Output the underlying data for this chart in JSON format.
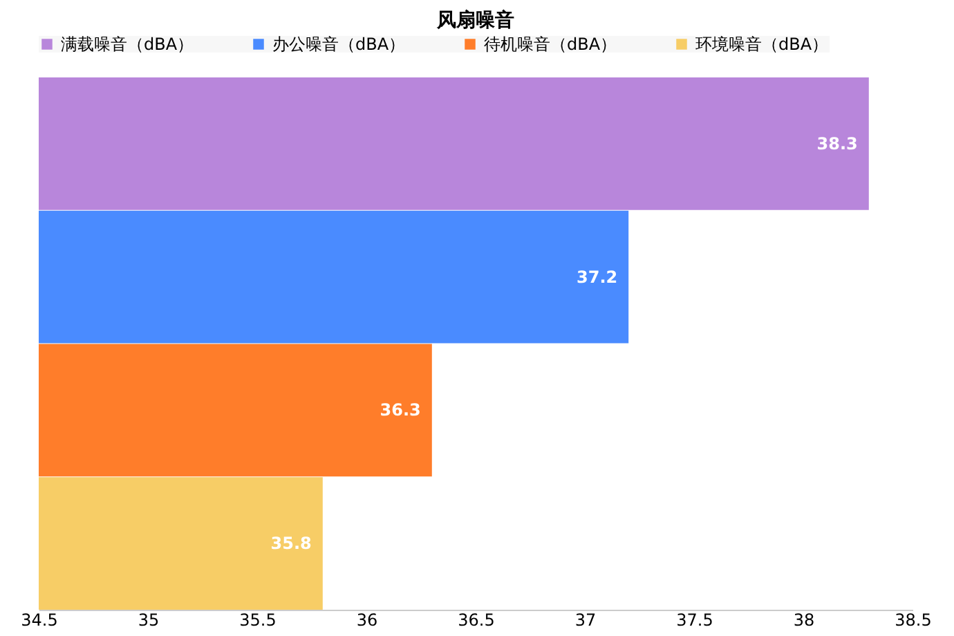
{
  "chart_data": {
    "type": "bar",
    "orientation": "horizontal",
    "title": "风扇噪音",
    "categories": [
      null
    ],
    "series": [
      {
        "name": "满载噪音（dBA）",
        "color": "#b886db",
        "values": [
          38.3
        ]
      },
      {
        "name": "办公噪音（dBA）",
        "color": "#4a8bff",
        "values": [
          37.2
        ]
      },
      {
        "name": "待机噪音（dBA）",
        "color": "#ff7d2a",
        "values": [
          36.3
        ]
      },
      {
        "name": "环境噪音（dBA）",
        "color": "#f7cd66",
        "values": [
          35.8
        ]
      }
    ],
    "xlim": [
      34.5,
      38.5
    ],
    "xticks": [
      34.5,
      35,
      35.5,
      36,
      36.5,
      37,
      37.5,
      38,
      38.5
    ],
    "data_labels": true,
    "legend": "top",
    "grid": false
  }
}
